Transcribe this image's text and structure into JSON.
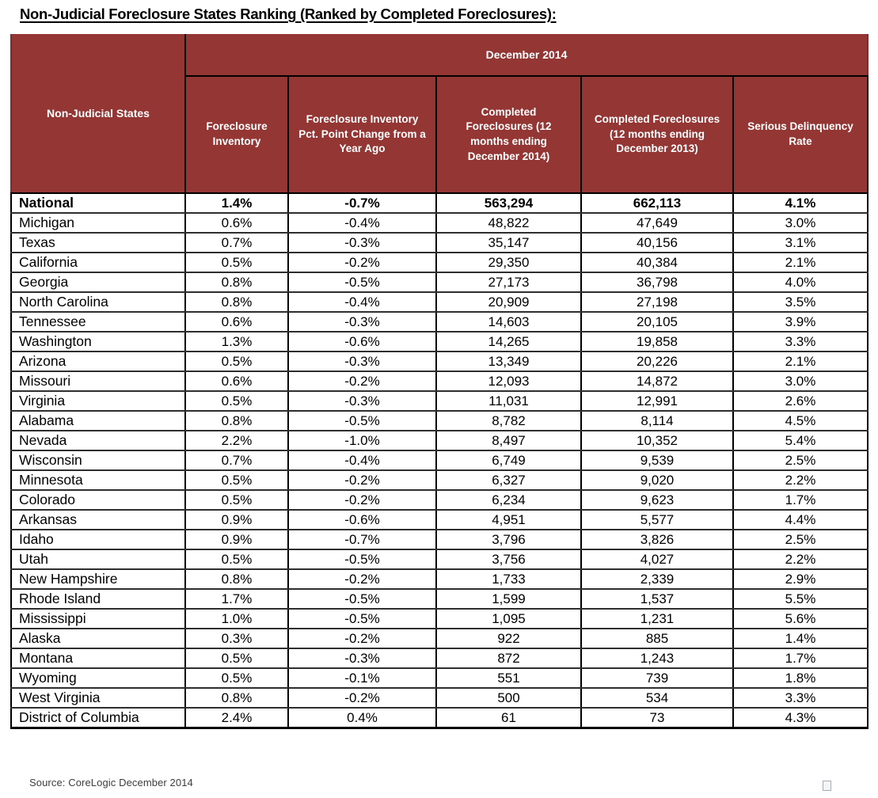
{
  "page": {
    "title": "Non-Judicial Foreclosure States Ranking (Ranked by Completed Foreclosures):",
    "source_note": "Source: CoreLogic December 2014"
  },
  "colors": {
    "header_bg": "#943634",
    "header_text": "#ffffff",
    "border": "#000000"
  },
  "table": {
    "row_header": "Non-Judicial States",
    "group_header": "December 2014",
    "columns": [
      "Foreclosure Inventory",
      "Foreclosure Inventory Pct. Point Change from a Year Ago",
      "Completed Foreclosures (12 months ending December 2014)",
      "Completed Foreclosures (12 months ending December 2013)",
      "Serious Delinquency Rate"
    ],
    "rows": [
      {
        "state": "National",
        "bold": true,
        "values": [
          "1.4%",
          "-0.7%",
          "563,294",
          "662,113",
          "4.1%"
        ]
      },
      {
        "state": "Michigan",
        "bold": false,
        "values": [
          "0.6%",
          "-0.4%",
          "48,822",
          "47,649",
          "3.0%"
        ]
      },
      {
        "state": "Texas",
        "bold": false,
        "values": [
          "0.7%",
          "-0.3%",
          "35,147",
          "40,156",
          "3.1%"
        ]
      },
      {
        "state": "California",
        "bold": false,
        "values": [
          "0.5%",
          "-0.2%",
          "29,350",
          "40,384",
          "2.1%"
        ]
      },
      {
        "state": "Georgia",
        "bold": false,
        "values": [
          "0.8%",
          "-0.5%",
          "27,173",
          "36,798",
          "4.0%"
        ]
      },
      {
        "state": "North Carolina",
        "bold": false,
        "values": [
          "0.8%",
          "-0.4%",
          "20,909",
          "27,198",
          "3.5%"
        ]
      },
      {
        "state": "Tennessee",
        "bold": false,
        "values": [
          "0.6%",
          "-0.3%",
          "14,603",
          "20,105",
          "3.9%"
        ]
      },
      {
        "state": "Washington",
        "bold": false,
        "values": [
          "1.3%",
          "-0.6%",
          "14,265",
          "19,858",
          "3.3%"
        ]
      },
      {
        "state": "Arizona",
        "bold": false,
        "values": [
          "0.5%",
          "-0.3%",
          "13,349",
          "20,226",
          "2.1%"
        ]
      },
      {
        "state": "Missouri",
        "bold": false,
        "values": [
          "0.6%",
          "-0.2%",
          "12,093",
          "14,872",
          "3.0%"
        ]
      },
      {
        "state": "Virginia",
        "bold": false,
        "values": [
          "0.5%",
          "-0.3%",
          "11,031",
          "12,991",
          "2.6%"
        ]
      },
      {
        "state": "Alabama",
        "bold": false,
        "values": [
          "0.8%",
          "-0.5%",
          "8,782",
          "8,114",
          "4.5%"
        ]
      },
      {
        "state": "Nevada",
        "bold": false,
        "values": [
          "2.2%",
          "-1.0%",
          "8,497",
          "10,352",
          "5.4%"
        ]
      },
      {
        "state": "Wisconsin",
        "bold": false,
        "values": [
          "0.7%",
          "-0.4%",
          "6,749",
          "9,539",
          "2.5%"
        ]
      },
      {
        "state": "Minnesota",
        "bold": false,
        "values": [
          "0.5%",
          "-0.2%",
          "6,327",
          "9,020",
          "2.2%"
        ]
      },
      {
        "state": "Colorado",
        "bold": false,
        "values": [
          "0.5%",
          "-0.2%",
          "6,234",
          "9,623",
          "1.7%"
        ]
      },
      {
        "state": "Arkansas",
        "bold": false,
        "values": [
          "0.9%",
          "-0.6%",
          "4,951",
          "5,577",
          "4.4%"
        ]
      },
      {
        "state": "Idaho",
        "bold": false,
        "values": [
          "0.9%",
          "-0.7%",
          "3,796",
          "3,826",
          "2.5%"
        ]
      },
      {
        "state": "Utah",
        "bold": false,
        "values": [
          "0.5%",
          "-0.5%",
          "3,756",
          "4,027",
          "2.2%"
        ]
      },
      {
        "state": "New Hampshire",
        "bold": false,
        "values": [
          "0.8%",
          "-0.2%",
          "1,733",
          "2,339",
          "2.9%"
        ]
      },
      {
        "state": "Rhode Island",
        "bold": false,
        "values": [
          "1.7%",
          "-0.5%",
          "1,599",
          "1,537",
          "5.5%"
        ]
      },
      {
        "state": "Mississippi",
        "bold": false,
        "values": [
          "1.0%",
          "-0.5%",
          "1,095",
          "1,231",
          "5.6%"
        ]
      },
      {
        "state": "Alaska",
        "bold": false,
        "values": [
          "0.3%",
          "-0.2%",
          "922",
          "885",
          "1.4%"
        ]
      },
      {
        "state": "Montana",
        "bold": false,
        "values": [
          "0.5%",
          "-0.3%",
          "872",
          "1,243",
          "1.7%"
        ]
      },
      {
        "state": "Wyoming",
        "bold": false,
        "values": [
          "0.5%",
          "-0.1%",
          "551",
          "739",
          "1.8%"
        ]
      },
      {
        "state": "West Virginia",
        "bold": false,
        "values": [
          "0.8%",
          "-0.2%",
          "500",
          "534",
          "3.3%"
        ]
      },
      {
        "state": "District of Columbia",
        "bold": false,
        "values": [
          "2.4%",
          "0.4%",
          "61",
          "73",
          "4.3%"
        ]
      }
    ]
  }
}
